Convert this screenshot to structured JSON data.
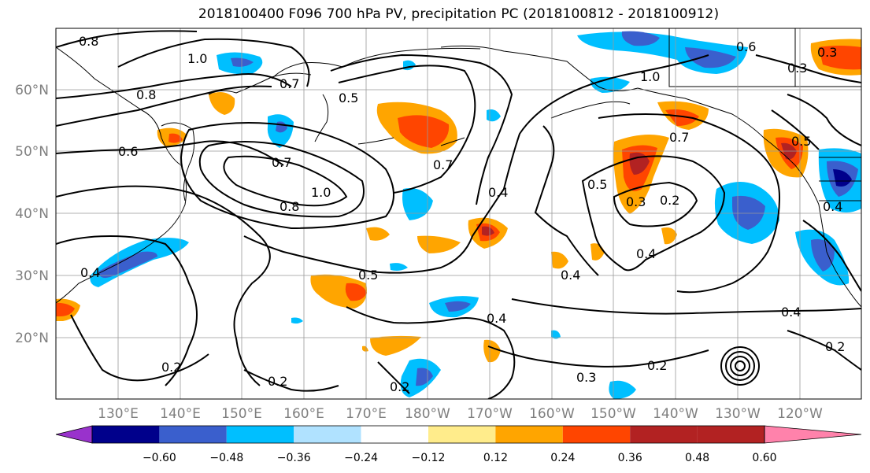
{
  "title": "2018100400 F096 700 hPa PV, precipitation PC (2018100812 - 2018100912)",
  "map": {
    "lat_labels": [
      "60°N",
      "50°N",
      "40°N",
      "30°N",
      "20°N"
    ],
    "lon_labels": [
      "130°E",
      "140°E",
      "150°E",
      "160°E",
      "170°E",
      "180°W",
      "170°W",
      "160°W",
      "150°W",
      "140°W",
      "130°W",
      "120°W"
    ],
    "contour_labels": [
      "0.8",
      "1.0",
      "0.7",
      "0.5",
      "0.8",
      "0.6",
      "0.7",
      "1.0",
      "0.8",
      "0.7",
      "0.4",
      "0.5",
      "0.3",
      "0.2",
      "0.4",
      "0.5",
      "0.4",
      "0.4",
      "0.3",
      "0.2",
      "0.2",
      "0.2",
      "0.2",
      "0.4",
      "0.2",
      "0.4",
      "0.3",
      "0.7",
      "1.0",
      "0.6",
      "0.3",
      "0.5",
      "0.4"
    ]
  },
  "colorbar": {
    "tick_labels": [
      "−0.60",
      "−0.48",
      "−0.36",
      "−0.24",
      "−0.12",
      "0.12",
      "0.24",
      "0.36",
      "0.48",
      "0.60"
    ],
    "colors": [
      "#9932cc",
      "#00008b",
      "#3a5fcd",
      "#00bfff",
      "#b0e2ff",
      "#ffffff",
      "#ffec8b",
      "#ffa500",
      "#ff4500",
      "#b22222",
      "#ff82ab"
    ]
  }
}
